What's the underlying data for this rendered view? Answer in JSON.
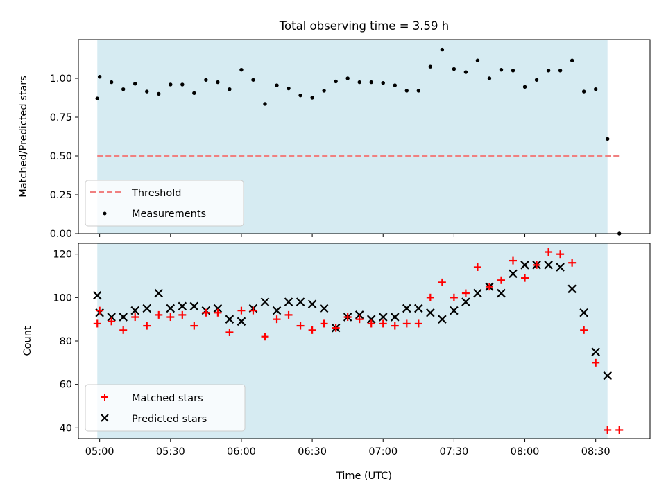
{
  "chart_data": [
    {
      "type": "scatter",
      "title": "Total observing time = 3.59 h",
      "xlabel": "",
      "ylabel": "Matched/Predicted stars",
      "ylim": [
        0,
        1.25
      ],
      "yticks": [
        "0.00",
        "0.25",
        "0.50",
        "0.75",
        "1.00"
      ],
      "ytick_values": [
        0,
        0.25,
        0.5,
        0.75,
        1.0
      ],
      "xlim": [
        "04:51",
        "08:53"
      ],
      "observing_window": [
        "04:59",
        "08:35"
      ],
      "legend_position": "lower-left",
      "threshold": {
        "name": "Threshold",
        "value": 0.5,
        "x_range": [
          "04:59",
          "08:40"
        ],
        "color": "#f08080"
      },
      "series": [
        {
          "name": "Measurements",
          "color": "#000000",
          "x": [
            "04:59",
            "05:00",
            "05:05",
            "05:10",
            "05:15",
            "05:20",
            "05:25",
            "05:30",
            "05:35",
            "05:40",
            "05:45",
            "05:50",
            "05:55",
            "06:00",
            "06:05",
            "06:10",
            "06:15",
            "06:20",
            "06:25",
            "06:30",
            "06:35",
            "06:40",
            "06:45",
            "06:50",
            "06:55",
            "07:00",
            "07:05",
            "07:10",
            "07:15",
            "07:20",
            "07:25",
            "07:30",
            "07:35",
            "07:40",
            "07:45",
            "07:50",
            "07:55",
            "08:00",
            "08:05",
            "08:10",
            "08:15",
            "08:20",
            "08:25",
            "08:30",
            "08:35",
            "08:40"
          ],
          "y": [
            0.87,
            1.01,
            0.975,
            0.93,
            0.965,
            0.915,
            0.9,
            0.96,
            0.96,
            0.905,
            0.99,
            0.975,
            0.93,
            1.055,
            0.99,
            0.835,
            0.955,
            0.935,
            0.89,
            0.875,
            0.92,
            0.98,
            1.0,
            0.975,
            0.975,
            0.97,
            0.955,
            0.92,
            0.92,
            1.075,
            1.185,
            1.06,
            1.04,
            1.115,
            1.0,
            1.055,
            1.05,
            0.945,
            0.99,
            1.05,
            1.05,
            1.115,
            0.915,
            0.93,
            0.61,
            0.0
          ]
        }
      ]
    },
    {
      "type": "scatter",
      "title": "",
      "xlabel": "Time (UTC)",
      "ylabel": "Count",
      "ylim": [
        35,
        125
      ],
      "yticks": [
        "40",
        "60",
        "80",
        "100",
        "120"
      ],
      "ytick_values": [
        40,
        60,
        80,
        100,
        120
      ],
      "xticks": [
        "05:00",
        "05:30",
        "06:00",
        "06:30",
        "07:00",
        "07:30",
        "08:00",
        "08:30"
      ],
      "xlim": [
        "04:51",
        "08:53"
      ],
      "observing_window": [
        "04:59",
        "08:35"
      ],
      "legend_position": "lower-left",
      "series": [
        {
          "name": "Matched stars",
          "marker": "plus",
          "color": "#ff0000",
          "x": [
            "04:59",
            "05:00",
            "05:05",
            "05:10",
            "05:15",
            "05:20",
            "05:25",
            "05:30",
            "05:35",
            "05:40",
            "05:45",
            "05:50",
            "05:55",
            "06:00",
            "06:05",
            "06:10",
            "06:15",
            "06:20",
            "06:25",
            "06:30",
            "06:35",
            "06:40",
            "06:45",
            "06:50",
            "06:55",
            "07:00",
            "07:05",
            "07:10",
            "07:15",
            "07:20",
            "07:25",
            "07:30",
            "07:35",
            "07:40",
            "07:45",
            "07:50",
            "07:55",
            "08:00",
            "08:05",
            "08:10",
            "08:15",
            "08:20",
            "08:25",
            "08:30",
            "08:35",
            "08:40"
          ],
          "y": [
            88,
            94,
            89,
            85,
            91,
            87,
            92,
            91,
            92,
            87,
            93,
            93,
            84,
            94,
            94,
            82,
            90,
            92,
            87,
            85,
            88,
            86,
            91,
            90,
            88,
            88,
            87,
            88,
            88,
            100,
            107,
            100,
            102,
            114,
            105,
            108,
            117,
            109,
            115,
            121,
            120,
            116,
            85,
            70,
            39,
            39
          ]
        },
        {
          "name": "Predicted stars",
          "marker": "x",
          "color": "#000000",
          "x": [
            "04:59",
            "05:00",
            "05:05",
            "05:10",
            "05:15",
            "05:20",
            "05:25",
            "05:30",
            "05:35",
            "05:40",
            "05:45",
            "05:50",
            "05:55",
            "06:00",
            "06:05",
            "06:10",
            "06:15",
            "06:20",
            "06:25",
            "06:30",
            "06:35",
            "06:40",
            "06:45",
            "06:50",
            "06:55",
            "07:00",
            "07:05",
            "07:10",
            "07:15",
            "07:20",
            "07:25",
            "07:30",
            "07:35",
            "07:40",
            "07:45",
            "07:50",
            "07:55",
            "08:00",
            "08:05",
            "08:10",
            "08:15",
            "08:20",
            "08:25",
            "08:30",
            "08:35"
          ],
          "y": [
            101,
            93,
            91,
            91,
            94,
            95,
            102,
            95,
            96,
            96,
            94,
            95,
            90,
            89,
            95,
            98,
            94,
            98,
            98,
            97,
            95,
            86,
            91,
            92,
            90,
            91,
            91,
            95,
            95,
            93,
            90,
            94,
            98,
            102,
            105,
            102,
            111,
            115,
            115,
            115,
            114,
            104,
            93,
            75,
            64
          ]
        }
      ]
    }
  ]
}
